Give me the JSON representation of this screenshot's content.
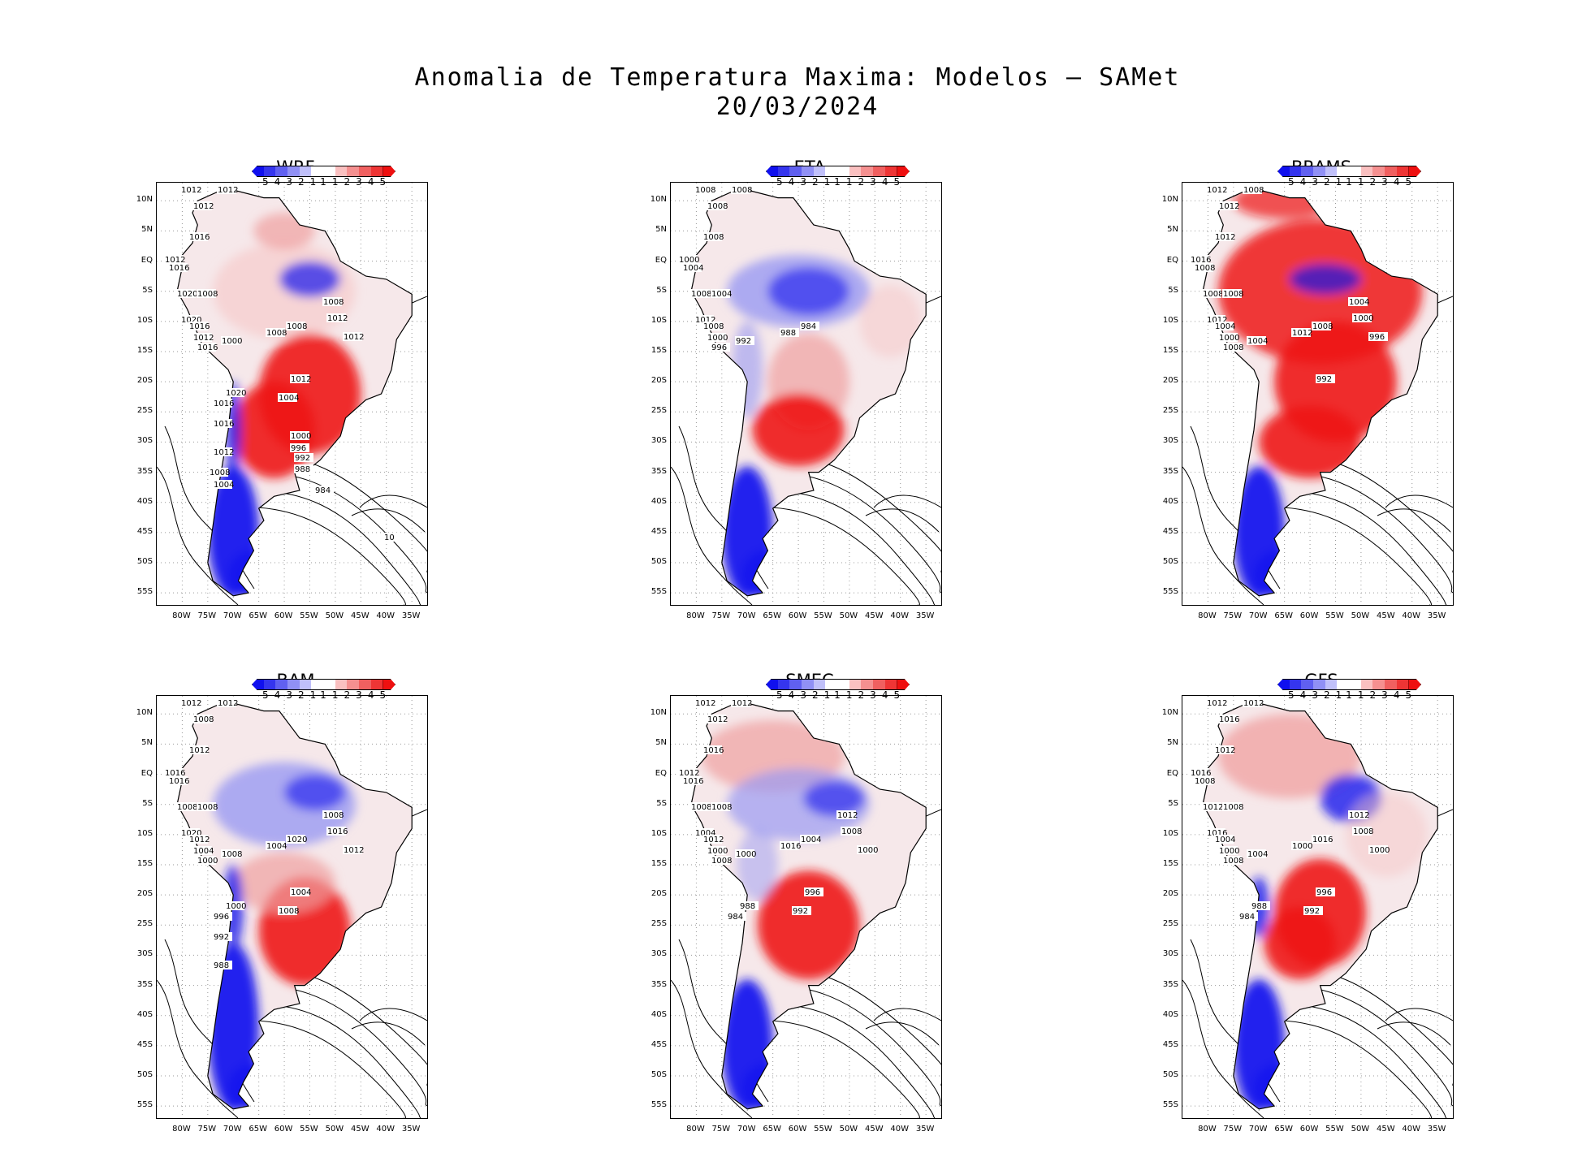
{
  "figure": {
    "title_line1": "Anomalia de Temperatura Maxima: Modelos — SAMet",
    "title_line2": "20/03/2024"
  },
  "axes": {
    "lat_ticks": [
      "10N",
      "5N",
      "EQ",
      "5S",
      "10S",
      "15S",
      "20S",
      "25S",
      "30S",
      "35S",
      "40S",
      "45S",
      "50S",
      "55S"
    ],
    "lon_ticks": [
      "80W",
      "75W",
      "70W",
      "65W",
      "60W",
      "55W",
      "50W",
      "45W",
      "40W",
      "35W"
    ]
  },
  "colorbar": {
    "labels": [
      "-5",
      "-4",
      "-3",
      "-2",
      "-1",
      "1",
      "1",
      "2",
      "3",
      "4",
      "5"
    ],
    "colors": [
      "#1010ee",
      "#3535ee",
      "#6060f0",
      "#9090f5",
      "#c0c0fa",
      "#ffffff",
      "#ffffff",
      "#fac0c0",
      "#f59090",
      "#f06060",
      "#ee3535",
      "#ee1010"
    ]
  },
  "panels": [
    {
      "name": "WRF",
      "isobars": [
        "1012",
        "1012",
        "1012",
        "1016",
        "1012",
        "1016",
        "1020",
        "1008",
        "1020",
        "1016",
        "1012",
        "1016",
        "1000",
        "1008",
        "1008",
        "1008",
        "1012",
        "1012",
        "1012",
        "1004",
        "1020",
        "1016",
        "1016",
        "1012",
        "1008",
        "1004",
        "1000",
        "996",
        "992",
        "988",
        "984",
        "10"
      ]
    },
    {
      "name": "ETA",
      "isobars": [
        "1008",
        "1008",
        "1008",
        "1008",
        "1000",
        "1004",
        "1008",
        "1004",
        "1012",
        "1008",
        "1000",
        "996",
        "992",
        "988",
        "984"
      ]
    },
    {
      "name": "BRAMS",
      "isobars": [
        "1012",
        "1008",
        "1012",
        "1012",
        "1016",
        "1008",
        "1008",
        "1008",
        "1012",
        "1004",
        "1000",
        "1008",
        "1004",
        "1012",
        "1008",
        "1004",
        "1000",
        "996",
        "992"
      ]
    },
    {
      "name": "BAM",
      "isobars": [
        "1012",
        "1012",
        "1008",
        "1012",
        "1016",
        "1016",
        "1008",
        "1008",
        "1020",
        "1012",
        "1004",
        "1000",
        "1008",
        "1004",
        "1020",
        "1008",
        "1016",
        "1012",
        "1004",
        "1008",
        "1000",
        "996",
        "992",
        "988"
      ]
    },
    {
      "name": "SMEC",
      "isobars": [
        "1012",
        "1012",
        "1012",
        "1016",
        "1012",
        "1016",
        "1008",
        "1008",
        "1004",
        "1012",
        "1000",
        "1008",
        "1000",
        "1016",
        "1004",
        "1012",
        "1008",
        "1000",
        "996",
        "992",
        "988",
        "984"
      ]
    },
    {
      "name": "GFS",
      "isobars": [
        "1012",
        "1012",
        "1016",
        "1012",
        "1016",
        "1008",
        "1012",
        "1008",
        "1016",
        "1004",
        "1000",
        "1008",
        "1004",
        "1000",
        "1016",
        "1012",
        "1008",
        "1000",
        "996",
        "992",
        "988",
        "984"
      ]
    }
  ]
}
